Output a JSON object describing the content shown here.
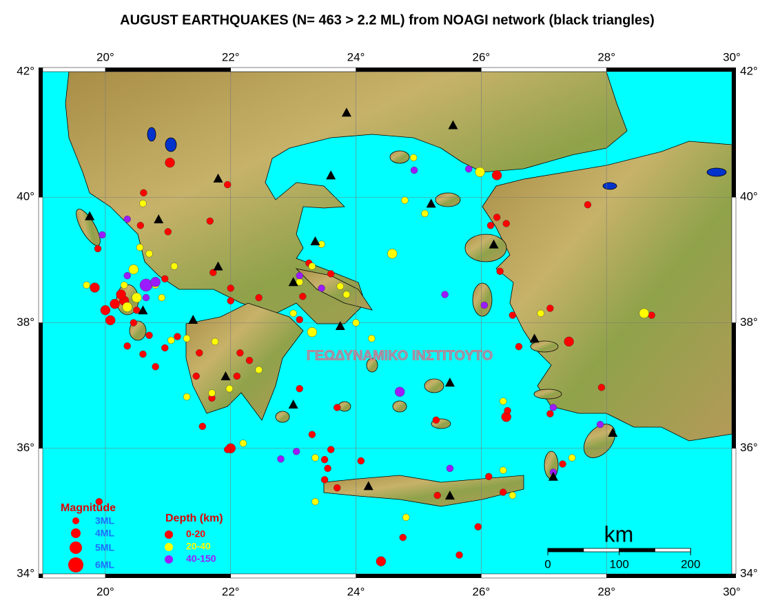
{
  "title": "AUGUST EARTHQUAKES (N= 463 > 2.2 ML) from NOAGI network (black triangles)",
  "longitude_ticks": [
    {
      "value": 20,
      "label": "20°"
    },
    {
      "value": 22,
      "label": "22°"
    },
    {
      "value": 24,
      "label": "24°"
    },
    {
      "value": 26,
      "label": "26°"
    },
    {
      "value": 28,
      "label": "28°"
    },
    {
      "value": 30,
      "label": "30°"
    }
  ],
  "latitude_ticks": [
    {
      "value": 42,
      "label": "42°"
    },
    {
      "value": 40,
      "label": "40°"
    },
    {
      "value": 38,
      "label": "38°"
    },
    {
      "value": 36,
      "label": "36°"
    },
    {
      "value": 34,
      "label": "34°"
    }
  ],
  "map_extent": {
    "lon": [
      19,
      30
    ],
    "lat": [
      34,
      42
    ]
  },
  "legend": {
    "magnitude": {
      "title": "Magnitude",
      "items": [
        {
          "label": "3ML",
          "value": 3
        },
        {
          "label": "4ML",
          "value": 4
        },
        {
          "label": "5ML",
          "value": 5
        },
        {
          "label": "6ML",
          "value": 6
        }
      ]
    },
    "depth": {
      "title": "Depth (km)",
      "items": [
        {
          "label": "0-20",
          "color": "#ff0000"
        },
        {
          "label": "20-40",
          "color": "#ffff00"
        },
        {
          "label": "40-150",
          "color": "#9b1cff"
        }
      ]
    }
  },
  "scale_bar": {
    "unit": "km",
    "ticks": [
      0,
      100,
      200
    ]
  },
  "watermark": "ΓΕΩΔΥΝΑΜΙΚΟ ΙΝΣΤΙΤΟΥΤΟ",
  "stations": [
    [
      19.75,
      39.7
    ],
    [
      20.85,
      39.65
    ],
    [
      21.8,
      40.3
    ],
    [
      21.8,
      38.9
    ],
    [
      21.4,
      38.05
    ],
    [
      20.6,
      38.2
    ],
    [
      21.92,
      37.15
    ],
    [
      23.0,
      36.7
    ],
    [
      23.35,
      39.3
    ],
    [
      23.0,
      38.65
    ],
    [
      23.6,
      40.35
    ],
    [
      23.85,
      41.35
    ],
    [
      25.55,
      41.15
    ],
    [
      25.2,
      39.9
    ],
    [
      26.2,
      39.25
    ],
    [
      23.75,
      37.95
    ],
    [
      26.85,
      37.75
    ],
    [
      25.5,
      37.05
    ],
    [
      28.1,
      36.25
    ],
    [
      27.15,
      35.55
    ],
    [
      25.5,
      35.25
    ],
    [
      24.2,
      35.4
    ]
  ],
  "events": [
    [
      21.03,
      40.55,
      4,
      0
    ],
    [
      20.61,
      40.07,
      3,
      0
    ],
    [
      21.95,
      40.2,
      3,
      0
    ],
    [
      20.56,
      39.55,
      3,
      0
    ],
    [
      21.67,
      39.62,
      3,
      0
    ],
    [
      19.88,
      39.18,
      3,
      0
    ],
    [
      19.83,
      38.56,
      4,
      0
    ],
    [
      20.08,
      38.04,
      4,
      0
    ],
    [
      20.0,
      38.2,
      4,
      0
    ],
    [
      20.3,
      38.35,
      4,
      0
    ],
    [
      20.45,
      38.0,
      3,
      0
    ],
    [
      20.7,
      37.8,
      3,
      0
    ],
    [
      20.95,
      37.6,
      3,
      0
    ],
    [
      21.15,
      37.78,
      3,
      0
    ],
    [
      20.6,
      37.5,
      3,
      0
    ],
    [
      20.8,
      37.3,
      3,
      0
    ],
    [
      20.35,
      37.63,
      3,
      0
    ],
    [
      21.5,
      37.52,
      3,
      0
    ],
    [
      21.45,
      37.15,
      3,
      0
    ],
    [
      21.55,
      36.35,
      3,
      0
    ],
    [
      21.7,
      36.8,
      3,
      0
    ],
    [
      22.15,
      37.52,
      3,
      0
    ],
    [
      22.3,
      37.4,
      3,
      0
    ],
    [
      22.1,
      37.15,
      3,
      0
    ],
    [
      22.45,
      38.4,
      3,
      0
    ],
    [
      22.0,
      38.35,
      3,
      0
    ],
    [
      22.0,
      38.55,
      3,
      0
    ],
    [
      21.72,
      38.8,
      3,
      0
    ],
    [
      20.95,
      38.7,
      3,
      0
    ],
    [
      21.0,
      39.45,
      3,
      0
    ],
    [
      23.15,
      38.42,
      3,
      0
    ],
    [
      23.6,
      38.78,
      3,
      0
    ],
    [
      23.25,
      38.95,
      3,
      0
    ],
    [
      23.1,
      38.05,
      3,
      0
    ],
    [
      23.1,
      36.95,
      3,
      0
    ],
    [
      23.3,
      36.22,
      3,
      0
    ],
    [
      23.7,
      36.65,
      3,
      0
    ],
    [
      23.5,
      35.82,
      3,
      0
    ],
    [
      23.6,
      35.98,
      3,
      0
    ],
    [
      23.5,
      35.5,
      3,
      0
    ],
    [
      23.55,
      35.68,
      3,
      0
    ],
    [
      23.7,
      35.37,
      3,
      0
    ],
    [
      24.08,
      35.8,
      3,
      0
    ],
    [
      24.75,
      34.58,
      3,
      0
    ],
    [
      24.4,
      34.2,
      4,
      0
    ],
    [
      25.65,
      34.3,
      3,
      0
    ],
    [
      25.95,
      34.75,
      3,
      0
    ],
    [
      25.3,
      35.25,
      3,
      0
    ],
    [
      25.28,
      36.45,
      3,
      0
    ],
    [
      26.35,
      35.3,
      3,
      0
    ],
    [
      26.4,
      36.5,
      4,
      0
    ],
    [
      26.42,
      36.6,
      3,
      0
    ],
    [
      26.12,
      35.55,
      3,
      0
    ],
    [
      26.3,
      38.82,
      3,
      0
    ],
    [
      26.5,
      38.12,
      3,
      0
    ],
    [
      27.1,
      38.23,
      3,
      0
    ],
    [
      26.6,
      37.62,
      3,
      0
    ],
    [
      27.4,
      37.7,
      4,
      0
    ],
    [
      27.92,
      36.97,
      3,
      0
    ],
    [
      27.1,
      36.55,
      3,
      0
    ],
    [
      27.3,
      35.75,
      3,
      0
    ],
    [
      26.25,
      40.35,
      4,
      0
    ],
    [
      26.15,
      39.55,
      3,
      0
    ],
    [
      26.4,
      39.58,
      3,
      0
    ],
    [
      26.25,
      39.68,
      3,
      0
    ],
    [
      27.7,
      39.88,
      3,
      0
    ],
    [
      28.72,
      38.12,
      3,
      0
    ],
    [
      19.9,
      35.15,
      3,
      0
    ],
    [
      22.0,
      36.0,
      4,
      0
    ],
    [
      21.95,
      35.98,
      3,
      0
    ],
    [
      20.15,
      38.3,
      4,
      0
    ],
    [
      20.25,
      38.45,
      4,
      0
    ],
    [
      20.5,
      38.2,
      3,
      0
    ],
    [
      20.6,
      39.9,
      3,
      1
    ],
    [
      20.55,
      39.2,
      3,
      1
    ],
    [
      20.7,
      39.1,
      3,
      1
    ],
    [
      20.45,
      38.85,
      4,
      1
    ],
    [
      20.3,
      38.6,
      3,
      1
    ],
    [
      20.5,
      38.4,
      4,
      1
    ],
    [
      20.35,
      38.25,
      4,
      1
    ],
    [
      20.9,
      38.4,
      3,
      1
    ],
    [
      20.8,
      38.6,
      3,
      1
    ],
    [
      21.1,
      38.9,
      3,
      1
    ],
    [
      19.7,
      38.6,
      3,
      1
    ],
    [
      21.3,
      37.75,
      3,
      1
    ],
    [
      21.05,
      37.72,
      3,
      1
    ],
    [
      21.75,
      37.7,
      3,
      1
    ],
    [
      21.3,
      36.82,
      3,
      1
    ],
    [
      21.7,
      36.88,
      3,
      1
    ],
    [
      22.45,
      37.25,
      3,
      1
    ],
    [
      21.98,
      36.95,
      3,
      1
    ],
    [
      22.2,
      36.08,
      3,
      1
    ],
    [
      23.3,
      38.9,
      3,
      1
    ],
    [
      23.45,
      39.25,
      3,
      1
    ],
    [
      23.75,
      38.58,
      3,
      1
    ],
    [
      23.85,
      38.45,
      3,
      1
    ],
    [
      23.0,
      38.15,
      3,
      1
    ],
    [
      23.3,
      37.85,
      4,
      1
    ],
    [
      23.1,
      38.65,
      3,
      1
    ],
    [
      24.25,
      37.75,
      3,
      1
    ],
    [
      23.35,
      35.85,
      3,
      1
    ],
    [
      23.35,
      35.15,
      3,
      1
    ],
    [
      24.0,
      38.0,
      3,
      1
    ],
    [
      24.78,
      39.95,
      3,
      1
    ],
    [
      25.1,
      39.74,
      3,
      1
    ],
    [
      24.58,
      39.1,
      4,
      1
    ],
    [
      24.8,
      34.9,
      3,
      1
    ],
    [
      26.35,
      36.75,
      3,
      1
    ],
    [
      26.35,
      35.65,
      3,
      1
    ],
    [
      26.5,
      35.25,
      3,
      1
    ],
    [
      27.45,
      35.85,
      3,
      1
    ],
    [
      26.95,
      38.15,
      3,
      1
    ],
    [
      28.6,
      38.15,
      4,
      1
    ],
    [
      25.98,
      40.4,
      4,
      1
    ],
    [
      24.92,
      40.63,
      3,
      1
    ],
    [
      20.65,
      38.6,
      5,
      2
    ],
    [
      20.8,
      38.65,
      4,
      2
    ],
    [
      20.35,
      38.75,
      3,
      2
    ],
    [
      20.65,
      38.4,
      3,
      2
    ],
    [
      19.95,
      39.4,
      3,
      2
    ],
    [
      20.35,
      39.65,
      3,
      2
    ],
    [
      23.1,
      38.75,
      3,
      2
    ],
    [
      23.45,
      38.55,
      3,
      2
    ],
    [
      25.42,
      38.45,
      3,
      2
    ],
    [
      26.05,
      38.28,
      3,
      2
    ],
    [
      24.7,
      36.9,
      4,
      2
    ],
    [
      22.8,
      35.83,
      3,
      2
    ],
    [
      23.05,
      35.95,
      3,
      2
    ],
    [
      25.5,
      35.68,
      3,
      2
    ],
    [
      27.15,
      36.65,
      3,
      2
    ],
    [
      27.9,
      36.38,
      3,
      2
    ],
    [
      27.15,
      35.62,
      3,
      2
    ],
    [
      24.93,
      40.43,
      3,
      2
    ],
    [
      25.8,
      40.45,
      3,
      2
    ]
  ]
}
